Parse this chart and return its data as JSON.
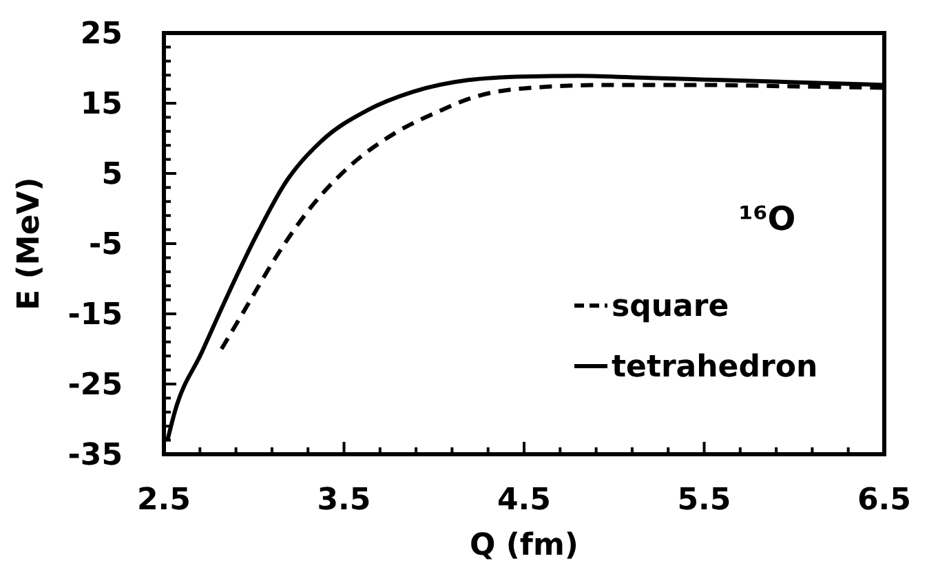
{
  "chart_data": {
    "type": "line",
    "xlabel": "Q (fm)",
    "ylabel": "E (MeV)",
    "annotations": [
      "¹⁶O"
    ],
    "legend": "right",
    "marker": "none",
    "grid": false,
    "xlim": [
      2.5,
      6.5
    ],
    "ylim": [
      -35,
      25
    ],
    "xticks": [
      2.5,
      {
        "value": 2.7,
        "label": null
      },
      {
        "value": 2.9,
        "label": null
      },
      {
        "value": 3.1,
        "label": null
      },
      {
        "value": 3.3,
        "label": null
      },
      3.5,
      {
        "value": 3.7,
        "label": null
      },
      {
        "value": 3.9,
        "label": null
      },
      {
        "value": 4.1,
        "label": null
      },
      {
        "value": 4.3,
        "label": null
      },
      4.5,
      {
        "value": 4.7,
        "label": null
      },
      {
        "value": 4.9,
        "label": null
      },
      {
        "value": 5.1,
        "label": null
      },
      {
        "value": 5.3,
        "label": null
      },
      5.5,
      {
        "value": 5.7,
        "label": null
      },
      {
        "value": 5.9,
        "label": null
      },
      {
        "value": 6.1,
        "label": null
      },
      {
        "value": 6.3,
        "label": null
      },
      6.5
    ],
    "yticks": [
      -35,
      {
        "value": -33,
        "label": null
      },
      {
        "value": -31,
        "label": null
      },
      {
        "value": -29,
        "label": null
      },
      {
        "value": -27,
        "label": null
      },
      -25,
      {
        "value": -23,
        "label": null
      },
      {
        "value": -21,
        "label": null
      },
      {
        "value": -19,
        "label": null
      },
      {
        "value": -17,
        "label": null
      },
      -15,
      {
        "value": -13,
        "label": null
      },
      {
        "value": -11,
        "label": null
      },
      {
        "value": -9,
        "label": null
      },
      {
        "value": -7,
        "label": null
      },
      -5,
      {
        "value": -3,
        "label": null
      },
      {
        "value": -1,
        "label": null
      },
      {
        "value": 1,
        "label": null
      },
      {
        "value": 3,
        "label": null
      },
      5,
      {
        "value": 7,
        "label": null
      },
      {
        "value": 9,
        "label": null
      },
      {
        "value": 11,
        "label": null
      },
      {
        "value": 13,
        "label": null
      },
      15,
      {
        "value": 17,
        "label": null
      },
      {
        "value": 19,
        "label": null
      },
      {
        "value": 21,
        "label": null
      },
      {
        "value": 23,
        "label": null
      },
      25
    ],
    "series": [
      {
        "name": "square",
        "color": "#000000",
        "line_style": "dashed",
        "x": [
          2.82,
          2.97,
          3.12,
          3.32,
          3.53,
          3.78,
          4.04,
          4.19,
          4.45,
          4.95,
          5.5,
          6.0,
          6.5
        ],
        "values": [
          -20,
          -13.5,
          -7,
          0.3,
          6,
          10.7,
          14,
          15.6,
          17,
          17.6,
          17.6,
          17.4,
          17.2
        ]
      },
      {
        "name": "tetrahedron",
        "color": "#000000",
        "line_style": "solid",
        "x": [
          2.52,
          2.56,
          2.71,
          2.86,
          3.02,
          3.17,
          3.37,
          3.63,
          3.88,
          4.19,
          4.5,
          4.8,
          5.2,
          5.6,
          6.0,
          6.5
        ],
        "values": [
          -33,
          -29,
          -20.5,
          -12,
          -3.5,
          3.5,
          9.5,
          14,
          16.6,
          18.3,
          18.8,
          18.9,
          18.6,
          18.3,
          18,
          17.6
        ]
      }
    ]
  }
}
